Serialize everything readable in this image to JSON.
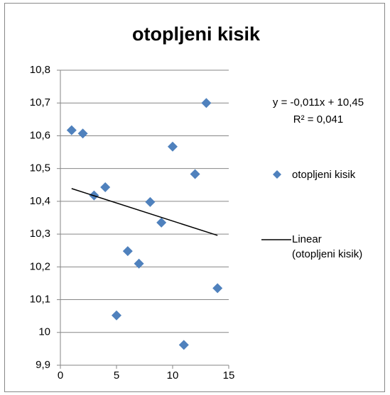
{
  "chart_data": {
    "type": "scatter",
    "title": "otopljeni kisik",
    "series": [
      {
        "name": "otopljeni kisik",
        "color": "#4f81bd",
        "x": [
          1,
          2,
          3,
          4,
          5,
          6,
          7,
          8,
          9,
          10,
          11,
          12,
          13,
          14
        ],
        "values": [
          10.617,
          10.607,
          10.418,
          10.443,
          10.052,
          10.248,
          10.21,
          10.398,
          10.335,
          10.567,
          9.962,
          10.483,
          10.7,
          10.135
        ]
      }
    ],
    "trendline": {
      "name": "Linear (otopljeni kisik)",
      "color": "#000000",
      "slope": -0.011,
      "intercept": 10.45,
      "equation": "y = -0,011x + 10,45",
      "r2": "R² = 0,041"
    },
    "xlim": [
      0,
      15
    ],
    "xticks": [
      0,
      5,
      10,
      15
    ],
    "ylim": [
      9.9,
      10.8
    ],
    "yticks": [
      {
        "value": 9.9,
        "label": "9,9"
      },
      10,
      {
        "value": 10.1,
        "label": "10,1"
      },
      {
        "value": 10.2,
        "label": "10,2"
      },
      {
        "value": 10.3,
        "label": "10,3"
      },
      {
        "value": 10.4,
        "label": "10,4"
      },
      {
        "value": 10.5,
        "label": "10,5"
      },
      {
        "value": 10.6,
        "label": "10,6"
      },
      {
        "value": 10.7,
        "label": "10,7"
      },
      {
        "value": 10.8,
        "label": "10,8"
      }
    ],
    "grid": true
  }
}
